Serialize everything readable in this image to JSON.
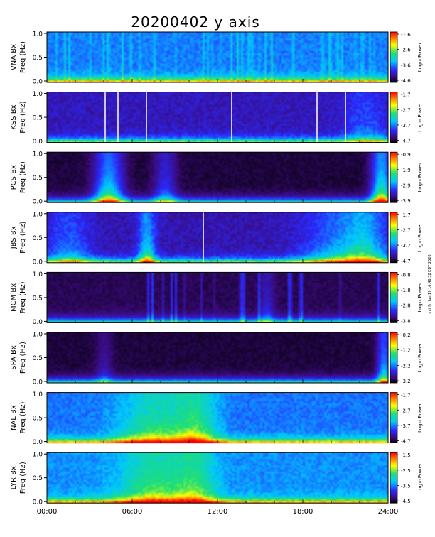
{
  "chart_data": {
    "type": "heatmap",
    "title": "20200402  y  axis",
    "freq_label": "Freq (Hz)",
    "freq_ticks": [
      "1.0",
      "0.5",
      "0.0"
    ],
    "ylim": [
      0.0,
      1.0
    ],
    "time_ticks": [
      "00:00",
      "06:00",
      "12:00",
      "18:00",
      "24:00"
    ],
    "xlim_hours": [
      0,
      24
    ],
    "colorbar_label": "Log₁₀ Power",
    "side_note": "mit Fri Jun 19 16:46:32 EDT 2020",
    "panels": [
      {
        "station": "VNA Bx",
        "cbar_ticks": [
          "-1.6",
          "-2.6",
          "-3.6",
          "-4.6"
        ],
        "clim": [
          -4.8,
          -1.6
        ],
        "base": 0.34,
        "dark": false,
        "stripes": "dense",
        "gaps": []
      },
      {
        "station": "KSS Bx",
        "cbar_ticks": [
          "-1.7",
          "-2.7",
          "-3.7",
          "-4.7"
        ],
        "clim": [
          -4.7,
          -1.7
        ],
        "base": 0.17,
        "dark": false,
        "stripes": "none",
        "gaps": [
          4.1,
          5.0,
          7.0,
          13.0,
          19.0,
          21.0
        ]
      },
      {
        "station": "PCS Bx",
        "cbar_ticks": [
          "-0.9",
          "-1.9",
          "-2.9",
          "-3.9"
        ],
        "clim": [
          -3.9,
          -0.9
        ],
        "base": 0.03,
        "dark": true,
        "stripes": "none",
        "gaps": []
      },
      {
        "station": "JBS Bx",
        "cbar_ticks": [
          "-1.7",
          "-2.7",
          "-3.7",
          "-4.7"
        ],
        "clim": [
          -4.7,
          -1.7
        ],
        "base": 0.16,
        "dark": false,
        "stripes": "none",
        "gaps": [
          11.0
        ]
      },
      {
        "station": "MCM Bx",
        "cbar_ticks": [
          "-0.8",
          "-1.8",
          "-2.8",
          "-3.8"
        ],
        "clim": [
          -3.8,
          -0.8
        ],
        "base": 0.05,
        "dark": true,
        "stripes": "sparse",
        "gaps": []
      },
      {
        "station": "SPA Bx",
        "cbar_ticks": [
          "-0.2",
          "-1.2",
          "-2.2",
          "-3.2"
        ],
        "clim": [
          -3.2,
          -0.2
        ],
        "base": 0.03,
        "dark": true,
        "stripes": "none",
        "gaps": []
      },
      {
        "station": "NAL Bx",
        "cbar_ticks": [
          "-1.7",
          "-2.7",
          "-3.7",
          "-4.7"
        ],
        "clim": [
          -4.7,
          -1.7
        ],
        "base": 0.33,
        "dark": false,
        "stripes": "none",
        "gaps": []
      },
      {
        "station": "LYR Bx",
        "cbar_ticks": [
          "-1.5",
          "-2.5",
          "-3.5",
          "-4.5"
        ],
        "clim": [
          -4.5,
          -1.5
        ],
        "base": 0.36,
        "dark": false,
        "stripes": "none",
        "gaps": []
      }
    ]
  }
}
